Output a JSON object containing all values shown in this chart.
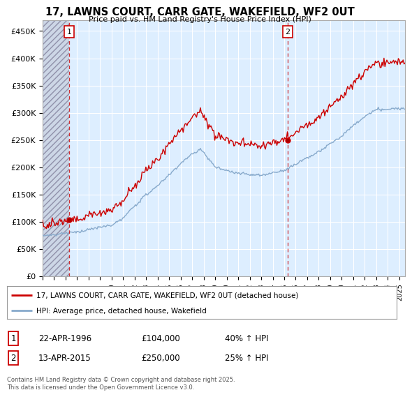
{
  "title": "17, LAWNS COURT, CARR GATE, WAKEFIELD, WF2 0UT",
  "subtitle": "Price paid vs. HM Land Registry's House Price Index (HPI)",
  "ylim": [
    0,
    470000
  ],
  "yticks": [
    0,
    50000,
    100000,
    150000,
    200000,
    250000,
    300000,
    350000,
    400000,
    450000
  ],
  "ytick_labels": [
    "£0",
    "£50K",
    "£100K",
    "£150K",
    "£200K",
    "£250K",
    "£300K",
    "£350K",
    "£400K",
    "£450K"
  ],
  "background_color": "#ffffff",
  "plot_bg_color": "#ddeeff",
  "grid_color": "#ffffff",
  "red_line_color": "#cc0000",
  "blue_line_color": "#88aacc",
  "hatch_color": "#c8c8d8",
  "legend_line1": "17, LAWNS COURT, CARR GATE, WAKEFIELD, WF2 0UT (detached house)",
  "legend_line2": "HPI: Average price, detached house, Wakefield",
  "table_row1": [
    "1",
    "22-APR-1996",
    "£104,000",
    "40% ↑ HPI"
  ],
  "table_row2": [
    "2",
    "13-APR-2015",
    "£250,000",
    "25% ↑ HPI"
  ],
  "footer": "Contains HM Land Registry data © Crown copyright and database right 2025.\nThis data is licensed under the Open Government Licence v3.0.",
  "sale1_year": 1996.32,
  "sale1_price": 104000,
  "sale2_year": 2015.29,
  "sale2_price": 250000,
  "xmin": 1994,
  "xmax": 2025.5
}
